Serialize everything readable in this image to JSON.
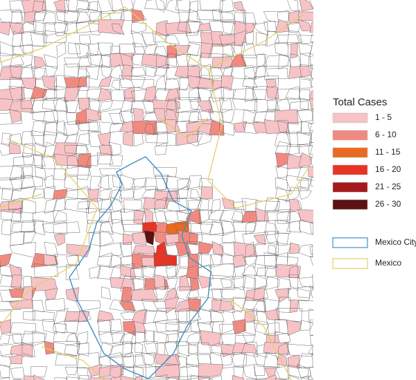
{
  "legend": {
    "title": "Total Cases",
    "classes": [
      {
        "label": "1 - 5",
        "color": "#f7c3c6"
      },
      {
        "label": "6 - 10",
        "color": "#f08a80"
      },
      {
        "label": "11 - 15",
        "color": "#ea6a22"
      },
      {
        "label": "16 - 20",
        "color": "#e63524"
      },
      {
        "label": "21 - 25",
        "color": "#a5191c"
      },
      {
        "label": "26 - 30",
        "color": "#5c1212"
      }
    ],
    "boundaries": [
      {
        "label": "Mexico City",
        "color": "#3f8fc4"
      },
      {
        "label": "Mexico",
        "color": "#e2cf5a"
      }
    ]
  }
}
